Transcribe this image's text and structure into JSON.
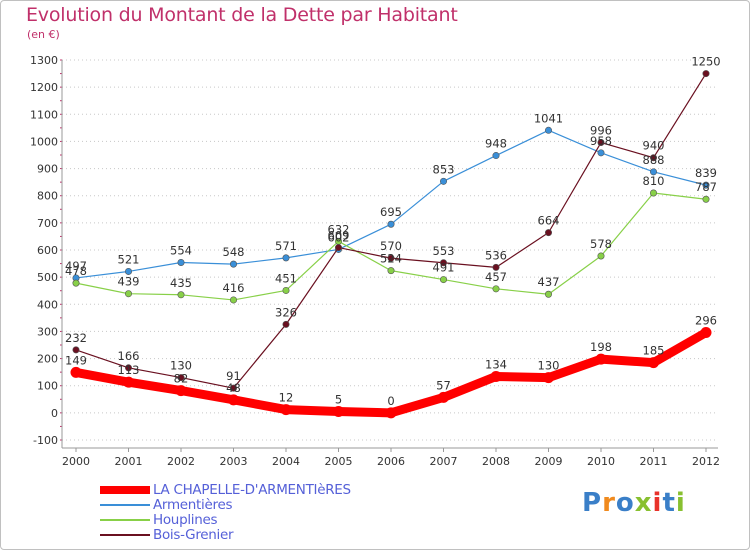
{
  "page": {
    "title": "Evolution du Montant de la Dette par Habitant",
    "unit": "(en €)",
    "logo": [
      "P",
      "r",
      "o",
      "x",
      "i",
      "t",
      "i"
    ]
  },
  "colors": {
    "title": "#c0306a",
    "legend_text": "#5560d8",
    "logo": [
      "#3a7fc8",
      "#f08a1e",
      "#3a7fc8",
      "#88c030",
      "#e8322a",
      "#3a7fc8",
      "#88c030"
    ]
  },
  "chart_data": {
    "type": "line",
    "x": [
      "2000",
      "2001",
      "2002",
      "2003",
      "2004",
      "2005",
      "2006",
      "2007",
      "2008",
      "2009",
      "2010",
      "2011",
      "2012"
    ],
    "y_ticks": [
      -100,
      0,
      100,
      200,
      300,
      400,
      500,
      600,
      700,
      800,
      900,
      1000,
      1100,
      1200,
      1300
    ],
    "ylim": [
      -100,
      1300
    ],
    "grid": "horizontal dotted",
    "legend_position": "bottom-left",
    "series": [
      {
        "name": "LA CHAPELLE-D'ARMENTIèRES",
        "color": "#ff0000",
        "values": [
          149,
          113,
          82,
          48,
          12,
          5,
          0,
          57,
          134,
          130,
          198,
          185,
          296
        ],
        "labels": [
          "149",
          "113",
          "82",
          "48",
          "12",
          "5",
          "0",
          "57",
          "134",
          "130",
          "198",
          "185",
          "296"
        ]
      },
      {
        "name": "Armentières",
        "color": "#3a8fd8",
        "values": [
          497,
          521,
          554,
          548,
          571,
          602,
          695,
          853,
          948,
          1041,
          958,
          888,
          839
        ],
        "labels": [
          "497",
          "521",
          "554",
          "548",
          "571",
          "602",
          "695",
          "853",
          "948",
          "1041",
          "958",
          "888",
          "839"
        ]
      },
      {
        "name": "Houplines",
        "color": "#88d048",
        "values": [
          478,
          439,
          435,
          416,
          451,
          632,
          524,
          491,
          457,
          437,
          578,
          810,
          787
        ],
        "labels": [
          "478",
          "439",
          "435",
          "416",
          "451",
          "632",
          "524",
          "491",
          "457",
          "437",
          "578",
          "810",
          "787"
        ]
      },
      {
        "name": "Bois-Grenier",
        "color": "#6a1020",
        "values": [
          232,
          166,
          130,
          91,
          326,
          609,
          570,
          553,
          536,
          664,
          996,
          940,
          1250
        ],
        "labels": [
          "232",
          "166",
          "130",
          "91",
          "326",
          "609",
          "570",
          "553",
          "536",
          "664",
          "996",
          "940",
          "1250"
        ]
      }
    ]
  }
}
